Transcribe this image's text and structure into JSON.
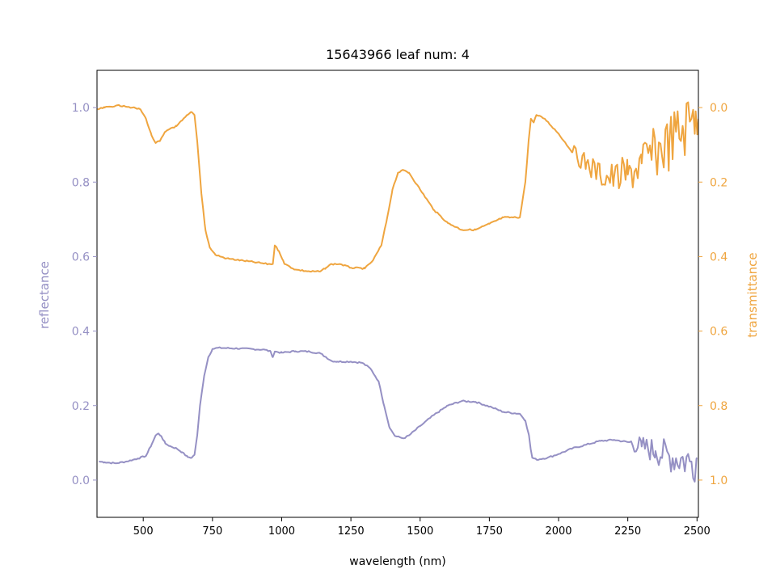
{
  "chart_data": {
    "type": "line",
    "title": "15643966 leaf num: 4",
    "xlabel": "wavelength (nm)",
    "xlim": [
      333,
      2505
    ],
    "xticks": [
      500,
      750,
      1000,
      1250,
      1500,
      1750,
      2000,
      2250,
      2500
    ],
    "left_axis": {
      "label": "reflectance",
      "color": "#9590c4",
      "ylim": [
        -0.1,
        1.1
      ],
      "ticks": [
        "0.0",
        "0.2",
        "0.4",
        "0.6",
        "0.8",
        "1.0"
      ]
    },
    "right_axis": {
      "label": "transmittance",
      "color": "#efa53f",
      "inverted": true,
      "ylim": [
        1.1,
        -0.1
      ],
      "ticks": [
        "0.0",
        "0.2",
        "0.4",
        "0.6",
        "0.8",
        "1.0"
      ]
    },
    "series": [
      {
        "axis": "left",
        "color": "#9590c4",
        "noisy_above": 2250,
        "points": [
          [
            340,
            0.05
          ],
          [
            360,
            0.048
          ],
          [
            400,
            0.045
          ],
          [
            440,
            0.05
          ],
          [
            480,
            0.058
          ],
          [
            510,
            0.065
          ],
          [
            530,
            0.095
          ],
          [
            545,
            0.12
          ],
          [
            555,
            0.125
          ],
          [
            565,
            0.118
          ],
          [
            580,
            0.098
          ],
          [
            600,
            0.09
          ],
          [
            620,
            0.085
          ],
          [
            640,
            0.075
          ],
          [
            660,
            0.062
          ],
          [
            675,
            0.06
          ],
          [
            685,
            0.068
          ],
          [
            695,
            0.12
          ],
          [
            705,
            0.2
          ],
          [
            720,
            0.28
          ],
          [
            735,
            0.33
          ],
          [
            750,
            0.352
          ],
          [
            770,
            0.355
          ],
          [
            850,
            0.353
          ],
          [
            940,
            0.35
          ],
          [
            960,
            0.345
          ],
          [
            968,
            0.33
          ],
          [
            975,
            0.345
          ],
          [
            1000,
            0.342
          ],
          [
            1050,
            0.346
          ],
          [
            1100,
            0.345
          ],
          [
            1140,
            0.34
          ],
          [
            1160,
            0.33
          ],
          [
            1180,
            0.32
          ],
          [
            1200,
            0.318
          ],
          [
            1250,
            0.318
          ],
          [
            1290,
            0.315
          ],
          [
            1320,
            0.3
          ],
          [
            1350,
            0.265
          ],
          [
            1370,
            0.2
          ],
          [
            1390,
            0.14
          ],
          [
            1410,
            0.118
          ],
          [
            1440,
            0.112
          ],
          [
            1460,
            0.12
          ],
          [
            1500,
            0.145
          ],
          [
            1550,
            0.175
          ],
          [
            1600,
            0.2
          ],
          [
            1650,
            0.212
          ],
          [
            1700,
            0.21
          ],
          [
            1760,
            0.195
          ],
          [
            1800,
            0.183
          ],
          [
            1860,
            0.178
          ],
          [
            1880,
            0.16
          ],
          [
            1893,
            0.12
          ],
          [
            1900,
            0.08
          ],
          [
            1905,
            0.06
          ],
          [
            1920,
            0.055
          ],
          [
            1960,
            0.06
          ],
          [
            2000,
            0.07
          ],
          [
            2050,
            0.085
          ],
          [
            2100,
            0.095
          ],
          [
            2150,
            0.105
          ],
          [
            2200,
            0.108
          ],
          [
            2250,
            0.102
          ],
          [
            2300,
            0.09
          ],
          [
            2350,
            0.078
          ],
          [
            2400,
            0.065
          ],
          [
            2450,
            0.055
          ],
          [
            2480,
            0.05
          ],
          [
            2500,
            0.06
          ]
        ]
      },
      {
        "axis": "right",
        "color": "#efa53f",
        "noisy_above": 2050,
        "points": [
          [
            335,
            0.005
          ],
          [
            360,
            0.0
          ],
          [
            400,
            -0.005
          ],
          [
            430,
            -0.005
          ],
          [
            460,
            0.0
          ],
          [
            490,
            0.005
          ],
          [
            510,
            0.03
          ],
          [
            530,
            0.075
          ],
          [
            545,
            0.095
          ],
          [
            560,
            0.09
          ],
          [
            580,
            0.065
          ],
          [
            600,
            0.055
          ],
          [
            620,
            0.05
          ],
          [
            640,
            0.035
          ],
          [
            660,
            0.02
          ],
          [
            675,
            0.012
          ],
          [
            685,
            0.02
          ],
          [
            695,
            0.09
          ],
          [
            710,
            0.23
          ],
          [
            725,
            0.33
          ],
          [
            740,
            0.375
          ],
          [
            760,
            0.395
          ],
          [
            800,
            0.405
          ],
          [
            850,
            0.41
          ],
          [
            900,
            0.415
          ],
          [
            950,
            0.42
          ],
          [
            968,
            0.42
          ],
          [
            975,
            0.37
          ],
          [
            990,
            0.385
          ],
          [
            1005,
            0.41
          ],
          [
            1010,
            0.42
          ],
          [
            1050,
            0.435
          ],
          [
            1100,
            0.44
          ],
          [
            1140,
            0.44
          ],
          [
            1160,
            0.43
          ],
          [
            1180,
            0.42
          ],
          [
            1210,
            0.42
          ],
          [
            1250,
            0.43
          ],
          [
            1300,
            0.432
          ],
          [
            1330,
            0.41
          ],
          [
            1360,
            0.37
          ],
          [
            1380,
            0.3
          ],
          [
            1400,
            0.22
          ],
          [
            1420,
            0.175
          ],
          [
            1440,
            0.168
          ],
          [
            1460,
            0.175
          ],
          [
            1500,
            0.22
          ],
          [
            1550,
            0.275
          ],
          [
            1600,
            0.31
          ],
          [
            1650,
            0.328
          ],
          [
            1700,
            0.328
          ],
          [
            1750,
            0.312
          ],
          [
            1800,
            0.295
          ],
          [
            1860,
            0.295
          ],
          [
            1880,
            0.2
          ],
          [
            1893,
            0.08
          ],
          [
            1900,
            0.03
          ],
          [
            1910,
            0.04
          ],
          [
            1920,
            0.02
          ],
          [
            1950,
            0.03
          ],
          [
            2000,
            0.07
          ],
          [
            2050,
            0.12
          ],
          [
            2100,
            0.15
          ],
          [
            2150,
            0.18
          ],
          [
            2200,
            0.19
          ],
          [
            2250,
            0.18
          ],
          [
            2300,
            0.15
          ],
          [
            2350,
            0.12
          ],
          [
            2400,
            0.095
          ],
          [
            2450,
            0.06
          ],
          [
            2480,
            0.03
          ],
          [
            2495,
            0.01
          ],
          [
            2505,
            0.03
          ]
        ]
      }
    ]
  }
}
